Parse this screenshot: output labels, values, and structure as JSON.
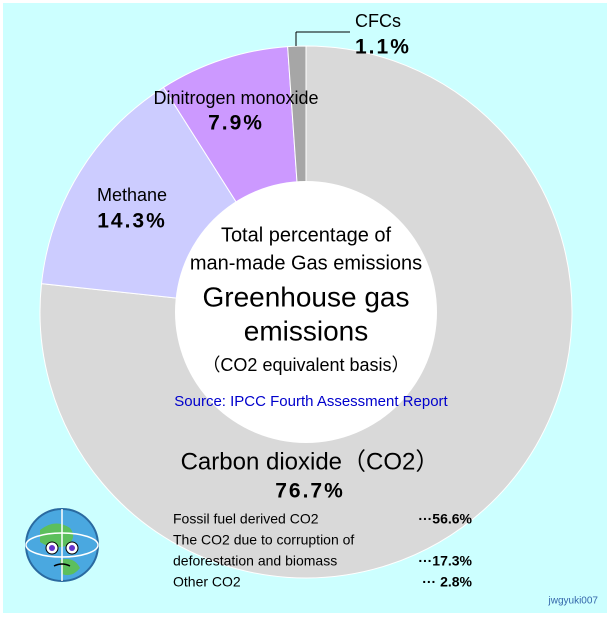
{
  "chart_data": {
    "type": "donut",
    "center_text": [
      "Total percentage of",
      "man-made Gas emissions"
    ],
    "title": [
      "Greenhouse gas",
      "emissions"
    ],
    "subtitle": "（CO2 equivalent basis）",
    "source": "Source: IPCC Fourth Assessment Report",
    "categories": [
      "Carbon dioxide（CO2）",
      "Methane",
      "Dinitrogen monoxide",
      "CFCs"
    ],
    "values": [
      76.7,
      14.3,
      7.9,
      1.1
    ],
    "value_labels": [
      "76.7%",
      "14.3%",
      "7.9%",
      "1.1%"
    ],
    "colors": [
      "#d9d9d9",
      "#ccccff",
      "#cc99ff",
      "#a6a6a6"
    ],
    "breakdown": [
      {
        "label": [
          "Fossil fuel derived CO2"
        ],
        "value": 56.6,
        "value_label": "···56.6%"
      },
      {
        "label": [
          "The CO2 due to corruption of",
          "deforestation and biomass"
        ],
        "value": 17.3,
        "value_label": "···17.3%"
      },
      {
        "label": [
          "Other CO2"
        ],
        "value": 2.8,
        "value_label": "···  2.8%"
      }
    ],
    "credit": "jwgyuki007"
  }
}
